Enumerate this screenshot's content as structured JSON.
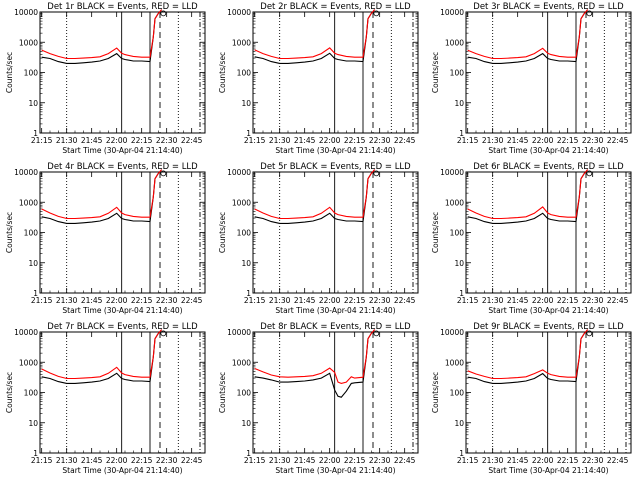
{
  "colors": {
    "background": "#ffffff",
    "axes": "#000000",
    "events": "#000000",
    "lld": "#ff0000"
  },
  "legend_text": "BLACK = Events, RED = LLD",
  "x_axis_label": "Start Time (30-Apr-04 21:14:40)",
  "y_axis_label": "Counts/sec",
  "x_tick_labels": [
    "21:15",
    "21:30",
    "21:45",
    "22:00",
    "22:15",
    "22:30",
    "22:45"
  ],
  "y_tick_labels": [
    "1",
    "10",
    "100",
    "1000",
    "10000"
  ],
  "chart_data": [
    {
      "type": "line",
      "title": "Det 1r",
      "xlabel": "Start Time (30-Apr-04 21:14:40)",
      "ylabel": "Counts/sec",
      "y_scale": "log",
      "ylim": [
        1,
        10000
      ],
      "x_ticks": [
        "21:15",
        "21:30",
        "21:45",
        "22:00",
        "22:15",
        "22:30",
        "22:45"
      ],
      "series": [
        {
          "name": "Events",
          "color": "#000000",
          "times": [
            "21:15",
            "21:20",
            "21:25",
            "21:30",
            "21:35",
            "21:40",
            "21:45",
            "21:50",
            "21:55",
            "22:00",
            "22:03",
            "22:05",
            "22:10",
            "22:15",
            "22:20",
            "22:22",
            "22:23",
            "22:25",
            "22:27"
          ],
          "values": [
            320,
            290,
            230,
            200,
            200,
            210,
            220,
            240,
            290,
            420,
            290,
            270,
            240,
            240,
            230,
            1500,
            6000,
            9000,
            12000
          ]
        },
        {
          "name": "LLD",
          "color": "#ff0000",
          "times": [
            "21:15",
            "21:20",
            "21:25",
            "21:30",
            "21:35",
            "21:40",
            "21:45",
            "21:50",
            "21:55",
            "22:00",
            "22:03",
            "22:05",
            "22:10",
            "22:15",
            "22:20",
            "22:22",
            "22:23",
            "22:25",
            "22:27"
          ],
          "values": [
            550,
            420,
            340,
            290,
            290,
            300,
            310,
            330,
            420,
            640,
            430,
            390,
            340,
            320,
            320,
            1500,
            6000,
            9000,
            12000
          ]
        }
      ]
    },
    {
      "type": "line",
      "title": "Det 2r",
      "xlabel": "Start Time (30-Apr-04 21:14:40)",
      "ylabel": "Counts/sec",
      "y_scale": "log",
      "ylim": [
        1,
        10000
      ],
      "x_ticks": [
        "21:15",
        "21:30",
        "21:45",
        "22:00",
        "22:15",
        "22:30",
        "22:45"
      ],
      "series": [
        {
          "name": "Events",
          "color": "#000000",
          "times": [
            "21:15",
            "21:20",
            "21:25",
            "21:30",
            "21:35",
            "21:40",
            "21:45",
            "21:50",
            "21:55",
            "22:00",
            "22:03",
            "22:05",
            "22:10",
            "22:15",
            "22:20",
            "22:22",
            "22:23",
            "22:25",
            "22:27"
          ],
          "values": [
            330,
            290,
            230,
            200,
            200,
            210,
            220,
            240,
            290,
            430,
            290,
            270,
            240,
            240,
            230,
            1500,
            6000,
            9000,
            12000
          ]
        },
        {
          "name": "LLD",
          "color": "#ff0000",
          "times": [
            "21:15",
            "21:20",
            "21:25",
            "21:30",
            "21:35",
            "21:40",
            "21:45",
            "21:50",
            "21:55",
            "22:00",
            "22:03",
            "22:05",
            "22:10",
            "22:15",
            "22:20",
            "22:22",
            "22:23",
            "22:25",
            "22:27"
          ],
          "values": [
            560,
            420,
            340,
            290,
            290,
            300,
            310,
            330,
            420,
            650,
            430,
            390,
            340,
            320,
            320,
            1500,
            6000,
            9000,
            12000
          ]
        }
      ]
    },
    {
      "type": "line",
      "title": "Det 3r",
      "xlabel": "Start Time (30-Apr-04 21:14:40)",
      "ylabel": "Counts/sec",
      "y_scale": "log",
      "ylim": [
        1,
        10000
      ],
      "x_ticks": [
        "21:15",
        "21:30",
        "21:45",
        "22:00",
        "22:15",
        "22:30",
        "22:45"
      ],
      "series": [
        {
          "name": "Events",
          "color": "#000000",
          "times": [
            "21:15",
            "21:20",
            "21:25",
            "21:30",
            "21:35",
            "21:40",
            "21:45",
            "21:50",
            "21:55",
            "22:00",
            "22:03",
            "22:05",
            "22:10",
            "22:15",
            "22:20",
            "22:22",
            "22:23",
            "22:25",
            "22:27"
          ],
          "values": [
            320,
            290,
            230,
            200,
            200,
            210,
            220,
            240,
            290,
            420,
            290,
            270,
            240,
            240,
            230,
            1500,
            6000,
            9000,
            12000
          ]
        },
        {
          "name": "LLD",
          "color": "#ff0000",
          "times": [
            "21:15",
            "21:20",
            "21:25",
            "21:30",
            "21:35",
            "21:40",
            "21:45",
            "21:50",
            "21:55",
            "22:00",
            "22:03",
            "22:05",
            "22:10",
            "22:15",
            "22:20",
            "22:22",
            "22:23",
            "22:25",
            "22:27"
          ],
          "values": [
            540,
            420,
            340,
            290,
            290,
            300,
            310,
            330,
            420,
            630,
            430,
            390,
            340,
            320,
            320,
            1500,
            6000,
            9000,
            12000
          ]
        }
      ]
    },
    {
      "type": "line",
      "title": "Det 4r",
      "xlabel": "Start Time (30-Apr-04 21:14:40)",
      "ylabel": "Counts/sec",
      "y_scale": "log",
      "ylim": [
        1,
        10000
      ],
      "x_ticks": [
        "21:15",
        "21:30",
        "21:45",
        "22:00",
        "22:15",
        "22:30",
        "22:45"
      ],
      "series": [
        {
          "name": "Events",
          "color": "#000000",
          "times": [
            "21:15",
            "21:20",
            "21:25",
            "21:30",
            "21:35",
            "21:40",
            "21:45",
            "21:50",
            "21:55",
            "22:00",
            "22:03",
            "22:05",
            "22:10",
            "22:15",
            "22:20",
            "22:22",
            "22:23",
            "22:25",
            "22:27"
          ],
          "values": [
            330,
            290,
            230,
            200,
            200,
            210,
            220,
            240,
            290,
            430,
            290,
            270,
            240,
            240,
            230,
            1500,
            6000,
            9000,
            12000
          ]
        },
        {
          "name": "LLD",
          "color": "#ff0000",
          "times": [
            "21:15",
            "21:20",
            "21:25",
            "21:30",
            "21:35",
            "21:40",
            "21:45",
            "21:50",
            "21:55",
            "22:00",
            "22:03",
            "22:05",
            "22:10",
            "22:15",
            "22:20",
            "22:22",
            "22:23",
            "22:25",
            "22:27"
          ],
          "values": [
            600,
            440,
            340,
            290,
            290,
            300,
            310,
            330,
            430,
            680,
            440,
            390,
            340,
            320,
            320,
            1500,
            6000,
            9000,
            12000
          ]
        }
      ]
    },
    {
      "type": "line",
      "title": "Det 5r",
      "xlabel": "Start Time (30-Apr-04 21:14:40)",
      "ylabel": "Counts/sec",
      "y_scale": "log",
      "ylim": [
        1,
        10000
      ],
      "x_ticks": [
        "21:15",
        "21:30",
        "21:45",
        "22:00",
        "22:15",
        "22:30",
        "22:45"
      ],
      "series": [
        {
          "name": "Events",
          "color": "#000000",
          "times": [
            "21:15",
            "21:20",
            "21:25",
            "21:30",
            "21:35",
            "21:40",
            "21:45",
            "21:50",
            "21:55",
            "22:00",
            "22:03",
            "22:05",
            "22:10",
            "22:15",
            "22:20",
            "22:22",
            "22:23",
            "22:25",
            "22:27"
          ],
          "values": [
            330,
            290,
            230,
            200,
            200,
            210,
            220,
            240,
            290,
            430,
            290,
            270,
            240,
            240,
            230,
            1500,
            6000,
            9000,
            12000
          ]
        },
        {
          "name": "LLD",
          "color": "#ff0000",
          "times": [
            "21:15",
            "21:20",
            "21:25",
            "21:30",
            "21:35",
            "21:40",
            "21:45",
            "21:50",
            "21:55",
            "22:00",
            "22:03",
            "22:05",
            "22:10",
            "22:15",
            "22:20",
            "22:22",
            "22:23",
            "22:25",
            "22:27"
          ],
          "values": [
            600,
            440,
            340,
            290,
            290,
            300,
            310,
            330,
            430,
            680,
            440,
            390,
            340,
            320,
            320,
            1500,
            6000,
            9000,
            12000
          ]
        }
      ]
    },
    {
      "type": "line",
      "title": "Det 6r",
      "xlabel": "Start Time (30-Apr-04 21:14:40)",
      "ylabel": "Counts/sec",
      "y_scale": "log",
      "ylim": [
        1,
        10000
      ],
      "x_ticks": [
        "21:15",
        "21:30",
        "21:45",
        "22:00",
        "22:15",
        "22:30",
        "22:45"
      ],
      "series": [
        {
          "name": "Events",
          "color": "#000000",
          "times": [
            "21:15",
            "21:20",
            "21:25",
            "21:30",
            "21:35",
            "21:40",
            "21:45",
            "21:50",
            "21:55",
            "22:00",
            "22:03",
            "22:05",
            "22:10",
            "22:15",
            "22:20",
            "22:22",
            "22:23",
            "22:25",
            "22:27"
          ],
          "values": [
            330,
            290,
            230,
            200,
            200,
            210,
            220,
            240,
            290,
            430,
            290,
            270,
            240,
            240,
            230,
            1500,
            6000,
            9000,
            12000
          ]
        },
        {
          "name": "LLD",
          "color": "#ff0000",
          "times": [
            "21:15",
            "21:20",
            "21:25",
            "21:30",
            "21:35",
            "21:40",
            "21:45",
            "21:50",
            "21:55",
            "22:00",
            "22:03",
            "22:05",
            "22:10",
            "22:15",
            "22:20",
            "22:22",
            "22:23",
            "22:25",
            "22:27"
          ],
          "values": [
            600,
            440,
            340,
            290,
            290,
            300,
            310,
            330,
            430,
            700,
            440,
            390,
            340,
            320,
            320,
            1500,
            6000,
            9000,
            12000
          ]
        }
      ]
    },
    {
      "type": "line",
      "title": "Det 7r",
      "xlabel": "Start Time (30-Apr-04 21:14:40)",
      "ylabel": "Counts/sec",
      "y_scale": "log",
      "ylim": [
        1,
        10000
      ],
      "x_ticks": [
        "21:15",
        "21:30",
        "21:45",
        "22:00",
        "22:15",
        "22:30",
        "22:45"
      ],
      "series": [
        {
          "name": "Events",
          "color": "#000000",
          "times": [
            "21:15",
            "21:20",
            "21:25",
            "21:30",
            "21:35",
            "21:40",
            "21:45",
            "21:50",
            "21:55",
            "22:00",
            "22:03",
            "22:05",
            "22:10",
            "22:15",
            "22:20",
            "22:22",
            "22:23",
            "22:25",
            "22:27"
          ],
          "values": [
            330,
            290,
            230,
            200,
            200,
            210,
            220,
            240,
            290,
            430,
            290,
            270,
            240,
            240,
            230,
            1500,
            6000,
            9000,
            12000
          ]
        },
        {
          "name": "LLD",
          "color": "#ff0000",
          "times": [
            "21:15",
            "21:20",
            "21:25",
            "21:30",
            "21:35",
            "21:40",
            "21:45",
            "21:50",
            "21:55",
            "22:00",
            "22:03",
            "22:05",
            "22:10",
            "22:15",
            "22:20",
            "22:22",
            "22:23",
            "22:25",
            "22:27"
          ],
          "values": [
            600,
            440,
            340,
            290,
            290,
            300,
            310,
            330,
            430,
            680,
            440,
            390,
            340,
            320,
            320,
            1500,
            6000,
            9000,
            12000
          ]
        }
      ]
    },
    {
      "type": "line",
      "title": "Det 8r",
      "xlabel": "Start Time (30-Apr-04 21:14:40)",
      "ylabel": "Counts/sec",
      "y_scale": "log",
      "ylim": [
        1,
        10000
      ],
      "x_ticks": [
        "21:15",
        "21:30",
        "21:45",
        "22:00",
        "22:15",
        "22:30",
        "22:45"
      ],
      "series": [
        {
          "name": "Events",
          "color": "#000000",
          "times": [
            "21:15",
            "21:20",
            "21:25",
            "21:30",
            "21:35",
            "21:40",
            "21:45",
            "21:50",
            "21:55",
            "22:00",
            "22:03",
            "22:05",
            "22:07",
            "22:10",
            "22:13",
            "22:15",
            "22:20",
            "22:22",
            "22:23",
            "22:25",
            "22:27"
          ],
          "values": [
            330,
            300,
            260,
            220,
            220,
            230,
            240,
            260,
            300,
            430,
            120,
            75,
            70,
            110,
            200,
            210,
            220,
            1500,
            6000,
            9000,
            12000
          ]
        },
        {
          "name": "LLD",
          "color": "#ff0000",
          "times": [
            "21:15",
            "21:20",
            "21:25",
            "21:30",
            "21:35",
            "21:40",
            "21:45",
            "21:50",
            "21:55",
            "22:00",
            "22:03",
            "22:05",
            "22:07",
            "22:10",
            "22:13",
            "22:15",
            "22:20",
            "22:22",
            "22:23",
            "22:25",
            "22:27"
          ],
          "values": [
            620,
            480,
            380,
            330,
            320,
            330,
            340,
            360,
            430,
            640,
            460,
            220,
            200,
            220,
            330,
            300,
            320,
            1500,
            6000,
            9000,
            12000
          ]
        }
      ]
    },
    {
      "type": "line",
      "title": "Det 9r",
      "xlabel": "Start Time (30-Apr-04 21:14:40)",
      "ylabel": "Counts/sec",
      "y_scale": "log",
      "ylim": [
        1,
        10000
      ],
      "x_ticks": [
        "21:15",
        "21:30",
        "21:45",
        "22:00",
        "22:15",
        "22:30",
        "22:45"
      ],
      "series": [
        {
          "name": "Events",
          "color": "#000000",
          "times": [
            "21:15",
            "21:20",
            "21:25",
            "21:30",
            "21:35",
            "21:40",
            "21:45",
            "21:50",
            "21:55",
            "22:00",
            "22:03",
            "22:05",
            "22:10",
            "22:15",
            "22:20",
            "22:22",
            "22:23",
            "22:25",
            "22:27"
          ],
          "values": [
            320,
            290,
            230,
            200,
            200,
            210,
            220,
            240,
            290,
            420,
            290,
            270,
            240,
            240,
            230,
            1500,
            6000,
            9000,
            12000
          ]
        },
        {
          "name": "LLD",
          "color": "#ff0000",
          "times": [
            "21:15",
            "21:20",
            "21:25",
            "21:30",
            "21:35",
            "21:40",
            "21:45",
            "21:50",
            "21:55",
            "22:00",
            "22:03",
            "22:05",
            "22:10",
            "22:15",
            "22:20",
            "22:22",
            "22:23",
            "22:25",
            "22:27"
          ],
          "values": [
            520,
            410,
            340,
            290,
            290,
            300,
            310,
            330,
            420,
            560,
            430,
            390,
            340,
            320,
            320,
            1500,
            6000,
            9000,
            12000
          ]
        }
      ]
    }
  ]
}
